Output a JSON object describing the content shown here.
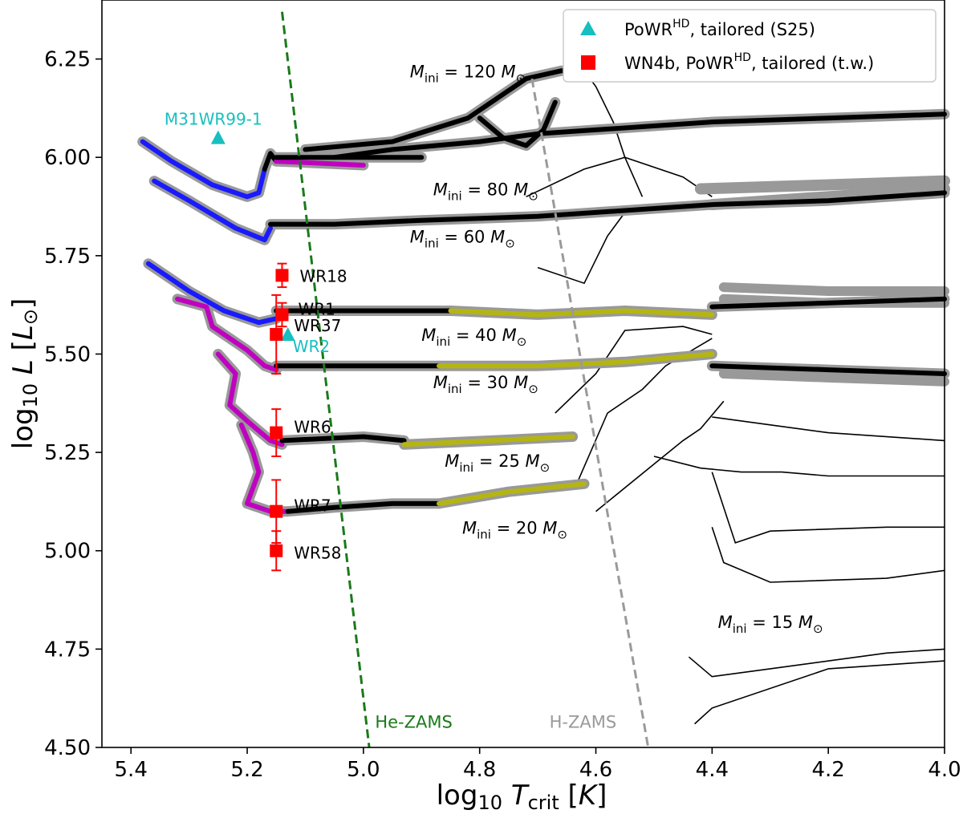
{
  "chart_data": {
    "type": "line",
    "xlabel": "log10 T_crit [K]",
    "ylabel": "log10 L [L_sun]",
    "xlim": [
      5.45,
      4.0
    ],
    "ylim": [
      4.5,
      6.4
    ],
    "x_ticks": [
      "5.4",
      "5.2",
      "5.0",
      "4.8",
      "4.6",
      "4.4",
      "4.2",
      "4.0"
    ],
    "y_ticks": [
      "4.50",
      "4.75",
      "5.00",
      "5.25",
      "5.50",
      "5.75",
      "6.00",
      "6.25"
    ],
    "x_tick_values": [
      5.4,
      5.2,
      5.0,
      4.8,
      4.6,
      4.4,
      4.2,
      4.0
    ],
    "y_tick_values": [
      4.5,
      4.75,
      5.0,
      5.25,
      5.5,
      5.75,
      6.0,
      6.25
    ],
    "colors": {
      "wr_phase": "#1a1aff",
      "transition_phase": "#c000c0",
      "ms_phase": "#000000",
      "yellow_phase": "#b5b512",
      "halo": "#999999",
      "he_zams": "#1a7a1a",
      "h_zams": "#9a9a9a",
      "powr_s25": "#17bfbf",
      "wn4b_tw": "#ff0000"
    },
    "legend": [
      {
        "label_main": "PoWR",
        "label_sup": "HD",
        "label_rest": ", tailored (S25)",
        "marker": "triangle",
        "color": "#17bfbf"
      },
      {
        "label_main": "WN4b, PoWR",
        "label_sup": "HD",
        "label_rest": ", tailored (t.w.)",
        "marker": "square",
        "color": "#ff0000"
      }
    ],
    "reference_lines": [
      {
        "name": "He-ZAMS",
        "color": "#1a7a1a",
        "x": [
          5.14,
          4.99
        ],
        "y": [
          6.37,
          4.5
        ]
      },
      {
        "name": "H-ZAMS",
        "color": "#9a9a9a",
        "x": [
          4.71,
          4.51
        ],
        "y": [
          6.2,
          4.5
        ]
      }
    ],
    "tracks": [
      {
        "mass_label": "120",
        "segments": [
          {
            "phase": "wr",
            "x": [
              5.38,
              5.33,
              5.26,
              5.2,
              5.18,
              5.17
            ],
            "y": [
              6.04,
              5.99,
              5.93,
              5.9,
              5.91,
              5.97
            ]
          },
          {
            "phase": "ms",
            "x": [
              5.17,
              5.16,
              5.15
            ],
            "y": [
              5.97,
              6.01,
              5.99
            ]
          },
          {
            "phase": "transition",
            "x": [
              5.15,
              5.0
            ],
            "y": [
              5.99,
              5.98
            ]
          },
          {
            "phase": "ms",
            "x": [
              5.15,
              5.0,
              4.9
            ],
            "y": [
              6.0,
              6.0,
              6.0
            ]
          },
          {
            "phase": "ms",
            "x": [
              5.05,
              4.95,
              4.8,
              4.7,
              4.6,
              4.5,
              4.4,
              4.2,
              4.0
            ],
            "y": [
              6.0,
              6.02,
              6.04,
              6.06,
              6.07,
              6.08,
              6.09,
              6.1,
              6.11
            ]
          },
          {
            "phase": "ms",
            "x": [
              5.1,
              4.95,
              4.82,
              4.72,
              4.66,
              4.62
            ],
            "y": [
              6.02,
              6.04,
              6.1,
              6.2,
              6.22,
              6.22
            ]
          },
          {
            "phase": "ms",
            "x": [
              4.8,
              4.76,
              4.72,
              4.69,
              4.67
            ],
            "y": [
              6.1,
              6.05,
              6.03,
              6.07,
              6.14
            ]
          },
          {
            "phase": "yellow",
            "x": [
              4.62,
              4.55
            ],
            "y": [
              6.21,
              6.22
            ]
          }
        ]
      },
      {
        "mass_label": "80",
        "segments": [
          {
            "phase": "wr",
            "x": [
              5.36,
              5.3,
              5.22,
              5.17,
              5.16
            ],
            "y": [
              5.94,
              5.89,
              5.82,
              5.79,
              5.82
            ]
          },
          {
            "phase": "ms",
            "x": [
              5.16,
              5.05,
              4.9,
              4.7,
              4.6,
              4.5,
              4.4,
              4.2,
              4.0
            ],
            "y": [
              5.83,
              5.83,
              5.84,
              5.85,
              5.86,
              5.87,
              5.88,
              5.89,
              5.91
            ]
          }
        ]
      },
      {
        "mass_label": "60",
        "segments": [
          {
            "phase": "wr",
            "x": [
              5.37,
              5.3,
              5.24,
              5.18,
              5.15
            ],
            "y": [
              5.73,
              5.66,
              5.61,
              5.58,
              5.59
            ]
          },
          {
            "phase": "ms",
            "x": [
              5.15,
              5.0,
              4.85
            ],
            "y": [
              5.61,
              5.61,
              5.61
            ]
          },
          {
            "phase": "yellow",
            "x": [
              4.85,
              4.7,
              4.55,
              4.4
            ],
            "y": [
              5.61,
              5.6,
              5.61,
              5.6
            ]
          },
          {
            "phase": "ms",
            "x": [
              4.4,
              4.2,
              4.0
            ],
            "y": [
              5.62,
              5.63,
              5.64
            ]
          }
        ]
      },
      {
        "mass_label": "40",
        "segments": [
          {
            "phase": "transition",
            "x": [
              5.32,
              5.27,
              5.26,
              5.2,
              5.17,
              5.15
            ],
            "y": [
              5.64,
              5.62,
              5.57,
              5.51,
              5.47,
              5.46
            ]
          },
          {
            "phase": "ms",
            "x": [
              5.15,
              5.0,
              4.87
            ],
            "y": [
              5.47,
              5.47,
              5.47
            ]
          },
          {
            "phase": "yellow",
            "x": [
              4.87,
              4.7,
              4.55,
              4.4
            ],
            "y": [
              5.47,
              5.47,
              5.48,
              5.5
            ]
          },
          {
            "phase": "ms",
            "x": [
              4.4,
              4.2,
              4.0
            ],
            "y": [
              5.47,
              5.46,
              5.45
            ]
          }
        ]
      },
      {
        "mass_label": "25",
        "segments": [
          {
            "phase": "transition",
            "x": [
              5.25,
              5.22,
              5.23,
              5.2,
              5.16,
              5.14
            ],
            "y": [
              5.5,
              5.45,
              5.37,
              5.33,
              5.28,
              5.27
            ]
          },
          {
            "phase": "ms",
            "x": [
              5.14,
              5.0,
              4.93
            ],
            "y": [
              5.28,
              5.29,
              5.28
            ]
          },
          {
            "phase": "yellow",
            "x": [
              4.93,
              4.78,
              4.64
            ],
            "y": [
              5.27,
              5.28,
              5.29
            ]
          }
        ]
      },
      {
        "mass_label": "20",
        "segments": [
          {
            "phase": "transition",
            "x": [
              5.21,
              5.19,
              5.18,
              5.2,
              5.16,
              5.13
            ],
            "y": [
              5.32,
              5.25,
              5.2,
              5.12,
              5.1,
              5.1
            ]
          },
          {
            "phase": "ms",
            "x": [
              5.13,
              5.05,
              4.95,
              4.87
            ],
            "y": [
              5.1,
              5.11,
              5.12,
              5.12
            ]
          },
          {
            "phase": "yellow",
            "x": [
              4.87,
              4.75,
              4.62
            ],
            "y": [
              5.12,
              5.15,
              5.17
            ]
          }
        ]
      }
    ],
    "track_labels": [
      {
        "text": "M_ini = 120 M_sun",
        "mass": "120",
        "x": 4.92,
        "y": 6.22
      },
      {
        "text": "M_ini = 80 M_sun",
        "mass": "80",
        "x": 4.88,
        "y": 5.92
      },
      {
        "text": "M_ini = 60 M_sun",
        "mass": "60",
        "x": 4.92,
        "y": 5.8
      },
      {
        "text": "M_ini = 40 M_sun",
        "mass": "40",
        "x": 4.9,
        "y": 5.55
      },
      {
        "text": "M_ini = 30 M_sun",
        "mass": "30",
        "x": 4.88,
        "y": 5.43
      },
      {
        "text": "M_ini = 25 M_sun",
        "mass": "25",
        "x": 4.86,
        "y": 5.23
      },
      {
        "text": "M_ini = 20 M_sun",
        "mass": "20",
        "x": 4.83,
        "y": 5.06
      },
      {
        "text": "M_ini = 15 M_sun",
        "mass": "15",
        "x": 4.39,
        "y": 4.82
      }
    ],
    "reference_labels": [
      {
        "text": "He-ZAMS",
        "x": 4.98,
        "y": 4.55
      },
      {
        "text": "H-ZAMS",
        "x": 4.68,
        "y": 4.55
      }
    ],
    "wn4b_stars": [
      {
        "name": "WR18",
        "x": 5.14,
        "y": 5.7,
        "err": 0.03
      },
      {
        "name": "WR1",
        "x": 5.14,
        "y": 5.6,
        "err": 0.03
      },
      {
        "name": "WR37",
        "x": 5.15,
        "y": 5.55,
        "err": 0.1
      },
      {
        "name": "WR6",
        "x": 5.15,
        "y": 5.3,
        "err": 0.06
      },
      {
        "name": "WR7",
        "x": 5.15,
        "y": 5.1,
        "err": 0.08
      },
      {
        "name": "WR58",
        "x": 5.15,
        "y": 5.0,
        "err": 0.05
      }
    ],
    "powr_s25_stars": [
      {
        "name": "M31WR99-1",
        "x": 5.25,
        "y": 6.05
      },
      {
        "name": "WR2",
        "x": 5.13,
        "y": 5.55
      }
    ]
  }
}
